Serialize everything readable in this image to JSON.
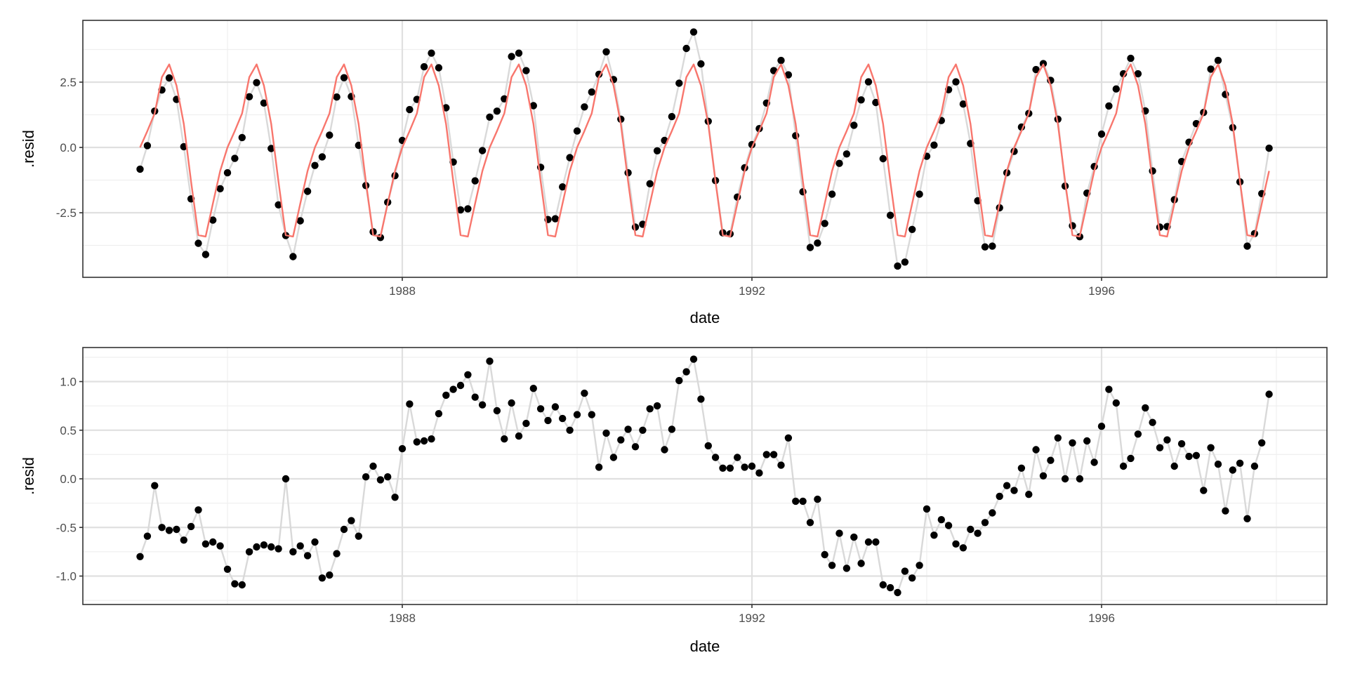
{
  "chart_data": [
    {
      "type": "line",
      "panel": "top",
      "title": "",
      "xlabel": "date",
      "ylabel": ".resid",
      "x_start": "1985-01",
      "x_step": "month",
      "x_ticks": [
        "1988",
        "1992",
        "1996"
      ],
      "y_ticks": [
        -2.5,
        0.0,
        2.5
      ],
      "y_tick_labels": [
        "-2.5",
        "0.0",
        "2.5"
      ],
      "ylim": [
        -5.0,
        4.87
      ],
      "grid": true,
      "series": [
        {
          "name": "observed",
          "style": "points+line",
          "point_color": "#000000",
          "line_color": "#d9d9d9",
          "values": [
            -0.83,
            0.07,
            1.39,
            2.2,
            2.66,
            1.84,
            0.03,
            -1.97,
            -3.67,
            -4.1,
            -2.78,
            -1.58,
            -0.97,
            -0.42,
            0.38,
            1.94,
            2.48,
            1.7,
            -0.04,
            -2.2,
            -3.37,
            -4.18,
            -2.81,
            -1.68,
            -0.69,
            -0.36,
            0.47,
            1.93,
            2.67,
            1.95,
            0.08,
            -1.46,
            -3.23,
            -3.45,
            -2.1,
            -1.08,
            0.27,
            1.45,
            1.84,
            3.09,
            3.61,
            3.05,
            1.52,
            -0.56,
            -2.39,
            -2.35,
            -1.28,
            -0.12,
            1.16,
            1.39,
            1.86,
            3.48,
            3.61,
            2.94,
            1.6,
            -0.76,
            -2.76,
            -2.73,
            -1.51,
            -0.39,
            0.63,
            1.55,
            2.12,
            2.8,
            3.66,
            2.6,
            1.08,
            -0.97,
            -3.05,
            -2.94,
            -1.39,
            -0.13,
            0.27,
            1.18,
            2.46,
            3.79,
            4.42,
            3.2,
            1.0,
            -1.27,
            -3.27,
            -3.31,
            -1.9,
            -0.78,
            0.11,
            0.72,
            1.7,
            2.94,
            3.33,
            2.78,
            0.45,
            -1.7,
            -3.83,
            -3.66,
            -2.91,
            -1.79,
            -0.61,
            -0.25,
            0.85,
            1.82,
            2.51,
            1.72,
            -0.43,
            -2.6,
            -4.54,
            -4.39,
            -3.14,
            -1.79,
            -0.34,
            0.09,
            1.03,
            2.21,
            2.51,
            1.66,
            0.15,
            -2.04,
            -3.81,
            -3.78,
            -2.31,
            -0.97,
            -0.15,
            0.78,
            1.3,
            2.98,
            3.21,
            2.57,
            1.08,
            -1.48,
            -3.0,
            -3.42,
            -1.75,
            -0.73,
            0.51,
            1.59,
            2.24,
            2.82,
            3.41,
            2.82,
            1.4,
            -0.9,
            -3.05,
            -3.03,
            -2.0,
            -0.54,
            0.2,
            0.91,
            1.34,
            3.0,
            3.33,
            2.03,
            0.76,
            -1.32,
            -3.78,
            -3.3,
            -1.77,
            -0.03
          ]
        },
        {
          "name": "seasonal",
          "style": "line",
          "line_color": "#f8766d",
          "pattern": [
            0.0,
            0.63,
            1.3,
            2.69,
            3.18,
            2.37,
            0.9,
            -1.3,
            -3.36,
            -3.41,
            -2.15,
            -0.9
          ],
          "repeats": 13
        }
      ]
    },
    {
      "type": "line",
      "panel": "bottom",
      "title": "",
      "xlabel": "date",
      "ylabel": ".resid",
      "x_start": "1985-01",
      "x_step": "month",
      "x_ticks": [
        "1988",
        "1992",
        "1996"
      ],
      "y_ticks": [
        -1.0,
        -0.5,
        0.0,
        0.5,
        1.0
      ],
      "y_tick_labels": [
        "-1.0",
        "-0.5",
        "0.0",
        "0.5",
        "1.0"
      ],
      "ylim": [
        -1.29,
        1.35
      ],
      "grid": true,
      "series": [
        {
          "name": "remainder",
          "style": "points+line",
          "point_color": "#000000",
          "line_color": "#d9d9d9",
          "values": [
            -0.8,
            -0.59,
            -0.07,
            -0.5,
            -0.53,
            -0.52,
            -0.63,
            -0.49,
            -0.32,
            -0.67,
            -0.65,
            -0.69,
            -0.93,
            -1.08,
            -1.09,
            -0.75,
            -0.7,
            -0.68,
            -0.7,
            -0.72,
            0.0,
            -0.75,
            -0.69,
            -0.79,
            -0.65,
            -1.02,
            -0.99,
            -0.77,
            -0.52,
            -0.43,
            -0.59,
            0.02,
            0.13,
            -0.01,
            0.02,
            -0.19,
            0.31,
            0.77,
            0.38,
            0.39,
            0.41,
            0.67,
            0.86,
            0.92,
            0.96,
            1.07,
            0.84,
            0.76,
            1.21,
            0.7,
            0.41,
            0.78,
            0.44,
            0.57,
            0.93,
            0.72,
            0.6,
            0.74,
            0.62,
            0.5,
            0.66,
            0.88,
            0.66,
            0.12,
            0.47,
            0.22,
            0.4,
            0.51,
            0.33,
            0.5,
            0.72,
            0.75,
            0.3,
            0.51,
            1.01,
            1.1,
            1.23,
            0.82,
            0.34,
            0.22,
            0.11,
            0.11,
            0.22,
            0.12,
            0.13,
            0.06,
            0.25,
            0.25,
            0.14,
            0.42,
            -0.23,
            -0.23,
            -0.45,
            -0.21,
            -0.78,
            -0.89,
            -0.56,
            -0.92,
            -0.6,
            -0.87,
            -0.65,
            -0.65,
            -1.09,
            -1.12,
            -1.17,
            -0.95,
            -1.02,
            -0.89,
            -0.31,
            -0.58,
            -0.42,
            -0.48,
            -0.67,
            -0.71,
            -0.52,
            -0.56,
            -0.45,
            -0.35,
            -0.18,
            -0.07,
            -0.12,
            0.11,
            -0.16,
            0.3,
            0.03,
            0.19,
            0.42,
            0.0,
            0.37,
            0.0,
            0.39,
            0.17,
            0.54,
            0.92,
            0.78,
            0.13,
            0.21,
            0.46,
            0.73,
            0.58,
            0.32,
            0.4,
            0.13,
            0.36,
            0.23,
            0.24,
            -0.12,
            0.32,
            0.15,
            -0.33,
            0.09,
            0.16,
            -0.41,
            0.13,
            0.37,
            0.87
          ]
        }
      ]
    }
  ],
  "panels": {
    "top": {
      "ylabel": ".resid",
      "xlabel": "date"
    },
    "bottom": {
      "ylabel": ".resid",
      "xlabel": "date"
    }
  },
  "colors": {
    "panel_border": "#333333",
    "grid_major": "#e0e0e0",
    "grid_minor": "#efefef",
    "points": "#000000",
    "observed_line": "#d9d9d9",
    "seasonal_line": "#f8766d"
  }
}
